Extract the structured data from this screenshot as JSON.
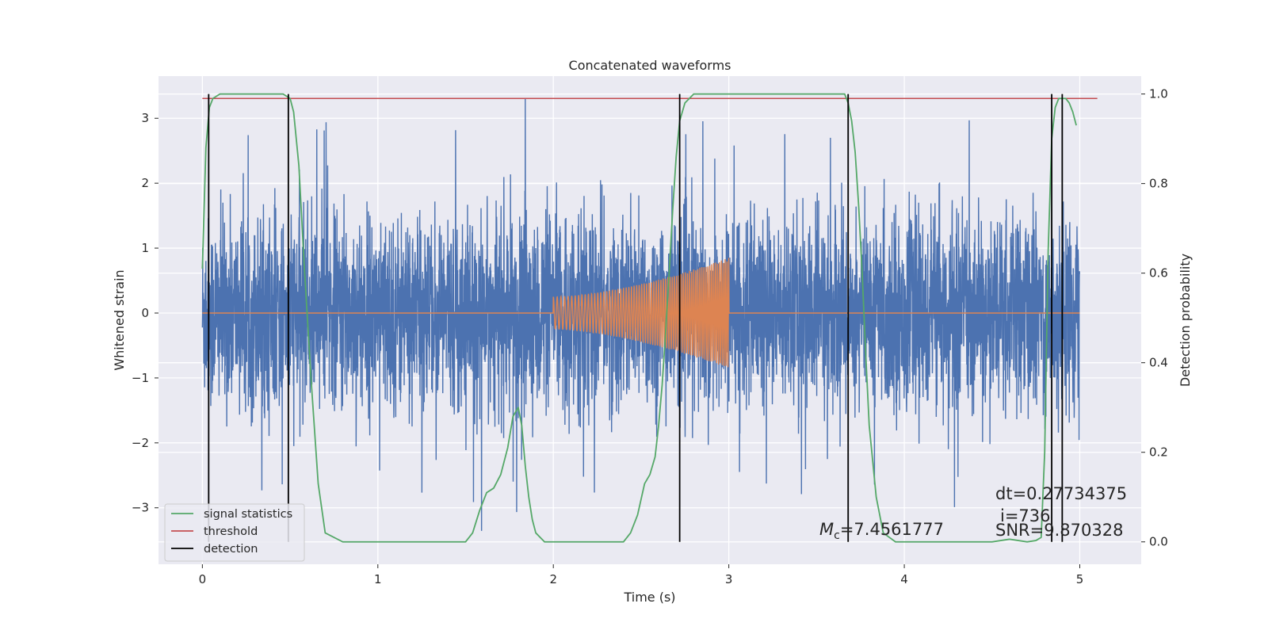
{
  "chart_data": {
    "type": "line",
    "title": "Concatenated waveforms",
    "xlabel": "Time (s)",
    "ylabel_left": "Whitened strain",
    "ylabel_right": "Detection probability",
    "xlim": [
      -0.25,
      5.35
    ],
    "ylim_left": [
      -3.87,
      3.65
    ],
    "ylim_right": [
      -0.05,
      1.04
    ],
    "x_ticks": [
      0,
      1,
      2,
      3,
      4,
      5
    ],
    "x_tick_labels": [
      "0",
      "1",
      "2",
      "3",
      "4",
      "5"
    ],
    "y_left_ticks": [
      -3,
      -2,
      -1,
      0,
      1,
      2,
      3
    ],
    "y_left_tick_labels": [
      "−3",
      "−2",
      "−1",
      "0",
      "1",
      "2",
      "3"
    ],
    "y_right_ticks": [
      0.0,
      0.2,
      0.4,
      0.6,
      0.8,
      1.0
    ],
    "y_right_tick_labels": [
      "0.0",
      "0.2",
      "0.4",
      "0.6",
      "0.8",
      "1.0"
    ],
    "grid": true,
    "legend_position": "lower-left",
    "legend": [
      {
        "label": "signal statistics",
        "color": "#55a868"
      },
      {
        "label": "threshold",
        "color": "#c44e52"
      },
      {
        "label": "detection",
        "color": "#000000"
      }
    ],
    "series": [
      {
        "kind": "noise",
        "axis": "left",
        "color": "#4c72b0",
        "x_range": [
          0,
          5
        ],
        "typical_amplitude": 2.0,
        "spike_max": 3.3,
        "spike_min": -3.55
      },
      {
        "kind": "chirp",
        "axis": "left",
        "color": "#dd8452",
        "baseline": 0,
        "x_range": [
          0,
          5
        ],
        "chirp_start": 2.0,
        "chirp_end": 3.0,
        "amplitude_start": 0.25,
        "amplitude_end": 0.85
      },
      {
        "name": "signal statistics",
        "axis": "right",
        "color": "#55a868",
        "x": [
          0.0,
          0.02,
          0.04,
          0.06,
          0.1,
          0.2,
          0.4,
          0.46,
          0.5,
          0.52,
          0.55,
          0.58,
          0.62,
          0.66,
          0.7,
          0.8,
          1.0,
          1.5,
          1.54,
          1.58,
          1.62,
          1.66,
          1.7,
          1.74,
          1.77,
          1.8,
          1.82,
          1.84,
          1.86,
          1.88,
          1.9,
          1.95,
          2.0,
          2.4,
          2.44,
          2.48,
          2.52,
          2.55,
          2.58,
          2.6,
          2.62,
          2.64,
          2.66,
          2.68,
          2.7,
          2.72,
          2.75,
          2.8,
          2.85,
          2.9,
          3.0,
          3.5,
          3.66,
          3.68,
          3.7,
          3.72,
          3.74,
          3.76,
          3.78,
          3.8,
          3.84,
          3.88,
          3.95,
          4.2,
          4.5,
          4.55,
          4.6,
          4.65,
          4.7,
          4.75,
          4.78,
          4.8,
          4.82,
          4.84,
          4.86,
          4.88,
          4.9,
          4.92,
          4.94,
          4.96,
          4.98
        ],
        "values": [
          0.61,
          0.88,
          0.97,
          0.99,
          1.0,
          1.0,
          1.0,
          1.0,
          0.99,
          0.96,
          0.84,
          0.62,
          0.36,
          0.13,
          0.02,
          0.0,
          0.0,
          0.0,
          0.02,
          0.07,
          0.11,
          0.12,
          0.15,
          0.21,
          0.28,
          0.3,
          0.26,
          0.17,
          0.1,
          0.05,
          0.02,
          0.0,
          0.0,
          0.0,
          0.02,
          0.06,
          0.13,
          0.15,
          0.19,
          0.26,
          0.35,
          0.47,
          0.6,
          0.74,
          0.86,
          0.94,
          0.98,
          1.0,
          1.0,
          1.0,
          1.0,
          1.0,
          1.0,
          0.98,
          0.94,
          0.87,
          0.75,
          0.6,
          0.42,
          0.26,
          0.1,
          0.02,
          0.0,
          0.0,
          0.0,
          0.003,
          0.006,
          0.003,
          0.0,
          0.003,
          0.01,
          0.2,
          0.65,
          0.9,
          0.97,
          0.99,
          0.99,
          0.99,
          0.98,
          0.96,
          0.93
        ]
      },
      {
        "name": "threshold",
        "axis": "right",
        "color": "#c44e52",
        "x": [
          0.0,
          5.1
        ],
        "values": [
          0.99,
          0.99
        ]
      }
    ],
    "detections": [
      0.036,
      0.49,
      2.72,
      3.68,
      4.84,
      4.9
    ],
    "annotations": {
      "mc_symbol": "M",
      "mc_subscript": "c",
      "mc_value": "=7.4561777",
      "dt": "dt=0.27734375",
      "i": "i=736",
      "snr": "SNR=9.870328"
    }
  }
}
